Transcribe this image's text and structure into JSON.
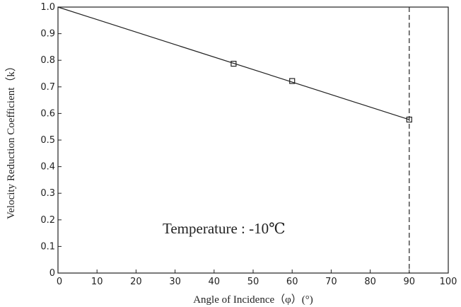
{
  "chart_data": {
    "type": "line",
    "title": "",
    "xlabel": "Angle of Incidence（φ）(°)",
    "ylabel": "Velocity Reduction Coefficient（k）",
    "xlim": [
      0,
      100
    ],
    "ylim": [
      0,
      1.0
    ],
    "x_ticks": [
      "0",
      "10",
      "20",
      "30",
      "40",
      "50",
      "60",
      "70",
      "80",
      "90",
      "100"
    ],
    "y_ticks": [
      "0",
      "0.1",
      "0.2",
      "0.3",
      "0.4",
      "0.5",
      "0.6",
      "0.7",
      "0.8",
      "0.9",
      "1.0"
    ],
    "grid": false,
    "line": {
      "x": [
        0,
        90
      ],
      "y": [
        1.0,
        0.577
      ]
    },
    "points": {
      "marker": "square",
      "x": [
        45,
        60,
        90
      ],
      "y": [
        0.787,
        0.722,
        0.577
      ]
    },
    "reference_line": {
      "x": 90,
      "style": "dashed"
    },
    "annotations": [
      {
        "text": "Temperature : -10℃"
      }
    ],
    "colors": {
      "line": "#222222",
      "axis": "#222222",
      "background": "#ffffff"
    }
  }
}
